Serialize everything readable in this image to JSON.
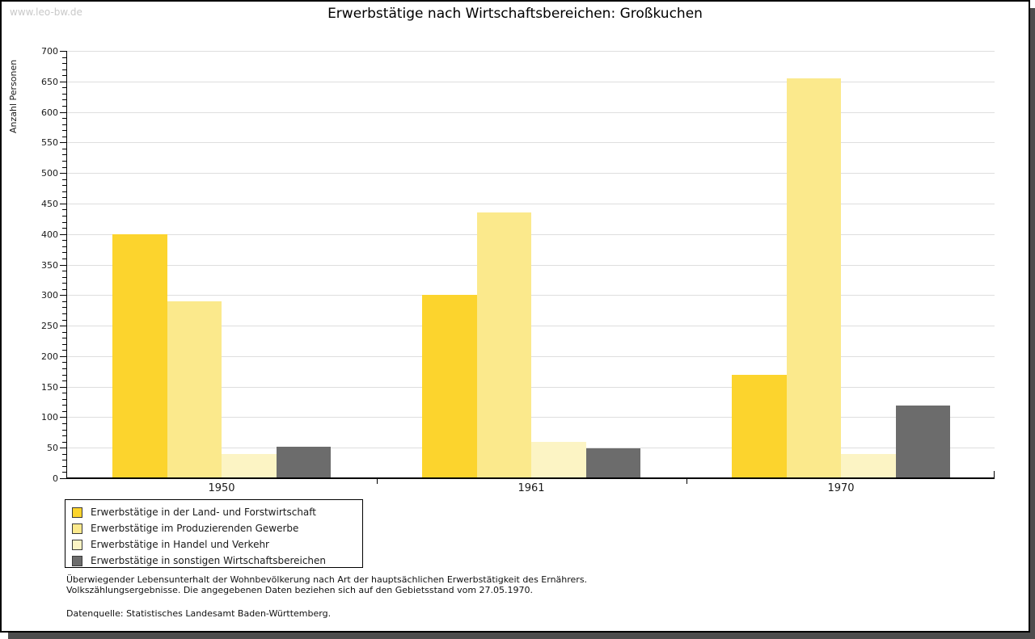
{
  "watermark": "www.leo-bw.de",
  "title": "Erwerbstätige nach Wirtschaftsbereichen: Großkuchen",
  "chart_data": {
    "type": "bar",
    "title": "Erwerbstätige nach Wirtschaftsbereichen: Großkuchen",
    "xlabel": "",
    "ylabel": "Anzahl Personen",
    "categories": [
      "1950",
      "1961",
      "1970"
    ],
    "series": [
      {
        "name": "Erwerbstätige in der Land- und Forstwirtschaft",
        "color": "#FCD42D",
        "values": [
          400,
          300,
          170
        ]
      },
      {
        "name": "Erwerbstätige im Produzierenden Gewerbe",
        "color": "#FBE98C",
        "values": [
          290,
          435,
          655
        ]
      },
      {
        "name": "Erwerbstätige in Handel und Verkehr",
        "color": "#FCF4C4",
        "values": [
          40,
          60,
          40
        ]
      },
      {
        "name": "Erwerbstätige in sonstigen Wirtschaftsbereichen",
        "color": "#6C6C6C",
        "values": [
          52,
          49,
          119
        ]
      }
    ],
    "ylim": [
      0,
      700
    ],
    "ytick_step": 50,
    "y_minor_tick_step": 10,
    "grid": true,
    "legend_position": "bottom-left",
    "bar_group_layout": "grouped"
  },
  "footer": {
    "line1": "Überwiegender Lebensunterhalt der Wohnbevölkerung nach Art der hauptsächlichen Erwerbstätigkeit des Ernährers.",
    "line2": "Volkszählungsergebnisse. Die angegebenen Daten beziehen sich auf den Gebietsstand vom 27.05.1970.",
    "source": "Datenquelle: Statistisches Landesamt Baden-Württemberg."
  }
}
